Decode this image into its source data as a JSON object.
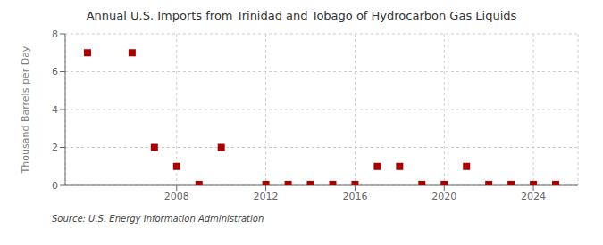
{
  "chart_data": {
    "type": "scatter",
    "title": "Annual U.S. Imports from Trinidad and Tobago of Hydrocarbon Gas Liquids",
    "ylabel": "Thousand Barrels per Day",
    "annotation": "Source: U.S. Energy Information Administration",
    "x": [
      2004,
      2006,
      2007,
      2008,
      2009,
      2010,
      2012,
      2013,
      2014,
      2015,
      2016,
      2017,
      2018,
      2019,
      2020,
      2021,
      2022,
      2023,
      2024,
      2025
    ],
    "values": [
      7,
      7,
      2,
      1,
      0.05,
      2,
      0.05,
      0.05,
      0.05,
      0.05,
      0.05,
      1,
      1,
      0.05,
      0.05,
      1,
      0.05,
      0.05,
      0.05,
      0.05
    ],
    "color": "#aa0000",
    "marker": "square",
    "xlim": [
      2003,
      2026
    ],
    "xticks": [
      2008,
      2012,
      2016,
      2020,
      2024
    ],
    "ylim": [
      0,
      8
    ],
    "yticks": [
      0,
      2,
      4,
      6,
      8
    ],
    "grid": true
  }
}
